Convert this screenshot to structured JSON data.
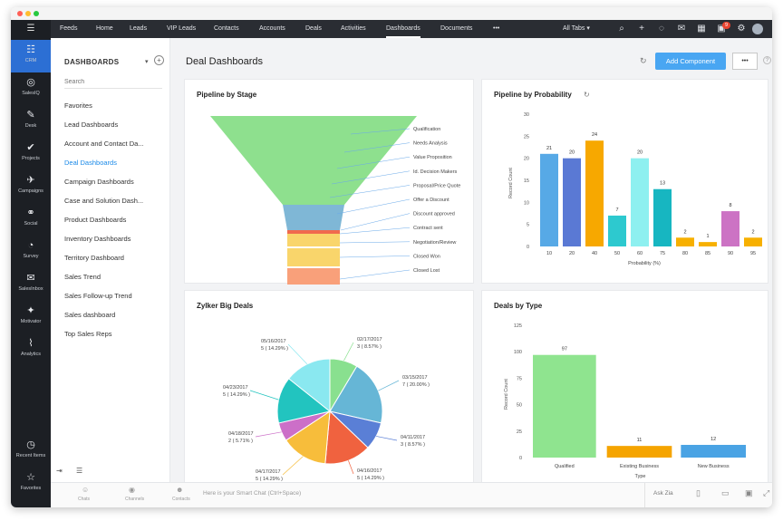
{
  "window_dots": [
    "#ff5f56",
    "#ffbd2e",
    "#27c93f"
  ],
  "rail": {
    "items": [
      {
        "label": "CRM",
        "icon": "crm-icon",
        "glyph": "☷"
      },
      {
        "label": "SalesIQ",
        "icon": "salesiq-icon",
        "glyph": "◎"
      },
      {
        "label": "Desk",
        "icon": "desk-icon",
        "glyph": "✎"
      },
      {
        "label": "Projects",
        "icon": "projects-icon",
        "glyph": "✔"
      },
      {
        "label": "Campaigns",
        "icon": "campaigns-icon",
        "glyph": "✈"
      },
      {
        "label": "Social",
        "icon": "social-icon",
        "glyph": "⚭"
      },
      {
        "label": "Survey",
        "icon": "survey-icon",
        "glyph": "◔"
      },
      {
        "label": "SalesInbox",
        "icon": "salesinbox-icon",
        "glyph": "✉"
      },
      {
        "label": "Motivator",
        "icon": "motivator-icon",
        "glyph": "✦"
      },
      {
        "label": "Analytics",
        "icon": "analytics-icon",
        "glyph": "⌇"
      }
    ],
    "recent_items": "Recent Items",
    "favorites": "Favorites"
  },
  "topnav": {
    "tabs": [
      "Feeds",
      "Home",
      "Leads",
      "VIP Leads",
      "Contacts",
      "Accounts",
      "Deals",
      "Activities",
      "Dashboards",
      "Documents",
      "•••"
    ],
    "active_tab": "Dashboards",
    "all_tabs": "All Tabs ▾",
    "notification_count": "9"
  },
  "sidebar": {
    "header": "DASHBOARDS",
    "search_placeholder": "Search",
    "items": [
      "Favorites",
      "Lead Dashboards",
      "Account and Contact Da...",
      "Deal Dashboards",
      "Campaign Dashboards",
      "Case and Solution Dash...",
      "Product Dashboards",
      "Inventory Dashboards",
      "Territory Dashboard",
      "Sales Trend",
      "Sales Follow-up Trend",
      "Sales dashboard",
      "Top Sales Reps"
    ],
    "active_item": "Deal Dashboards"
  },
  "main": {
    "title": "Deal Dashboards",
    "add_component": "Add Component",
    "more": "•••"
  },
  "cards": {
    "funnel_title": "Pipeline by Stage",
    "probability_title": "Pipeline by Probability",
    "pie_title": "Zylker Big Deals",
    "type_title": "Deals by Type"
  },
  "bottombar": {
    "items": [
      "Chats",
      "Channels",
      "Contacts"
    ],
    "smart_chat": "Here is your Smart Chat (Ctrl+Space)",
    "ask_zia": "Ask Zia"
  },
  "chart_data": [
    {
      "type": "funnel",
      "title": "Pipeline by Stage",
      "categories": [
        "Qualification",
        "Needs Analysis",
        "Value Proposition",
        "Id. Decision Makers",
        "Proposal/Price Quote",
        "Offer a Discount",
        "Discount approved",
        "Contract sent",
        "Negotiation/Review",
        "Closed Won",
        "Closed Lost"
      ],
      "colors": [
        "#8ee08e",
        "#8ee08e",
        "#8ee08e",
        "#8ee08e",
        "#8ee08e",
        "#7fb7d6",
        "#7fb7d6",
        "#f06a4e",
        "#f9d56b",
        "#f9d56b",
        "#f9a07a"
      ]
    },
    {
      "type": "bar",
      "title": "Pipeline by Probability",
      "categories": [
        "10",
        "20",
        "40",
        "50",
        "60",
        "75",
        "80",
        "85",
        "90",
        "95"
      ],
      "values": [
        21,
        20,
        24,
        7,
        20,
        13,
        2,
        1,
        8,
        2
      ],
      "colors": [
        "#57a9e6",
        "#5a79d4",
        "#f7a800",
        "#2dc9cf",
        "#8ef0f0",
        "#17b6c1",
        "#f7b000",
        "#f7b000",
        "#cc73c4",
        "#f7b000"
      ],
      "xlabel": "Probability (%)",
      "ylabel": "Record Count",
      "ylim": [
        0,
        30
      ],
      "yticks": [
        "30",
        "25",
        "20",
        "15",
        "10",
        "5",
        "0"
      ]
    },
    {
      "type": "pie",
      "title": "Zylker Big Deals",
      "slices": [
        {
          "date": "02/17/2017",
          "label": "3 ( 8.57% )",
          "value": 8.57,
          "color": "#89e08f"
        },
        {
          "date": "03/15/2017",
          "label": "7 ( 20.00% )",
          "value": 20.0,
          "color": "#66b6d6"
        },
        {
          "date": "04/11/2017",
          "label": "3 ( 8.57% )",
          "value": 8.57,
          "color": "#5a7fd6"
        },
        {
          "date": "04/16/2017",
          "label": "5 ( 14.29% )",
          "value": 14.29,
          "color": "#f0623f"
        },
        {
          "date": "04/17/2017",
          "label": "5 ( 14.29% )",
          "value": 14.29,
          "color": "#f7bd3b"
        },
        {
          "date": "04/18/2017",
          "label": "2 ( 5.71% )",
          "value": 5.71,
          "color": "#cc6fc8"
        },
        {
          "date": "04/23/2017",
          "label": "5 ( 14.29% )",
          "value": 14.29,
          "color": "#22c4bf"
        },
        {
          "date": "05/16/2017",
          "label": "5 ( 14.29% )",
          "value": 14.29,
          "color": "#8ae8f0"
        }
      ]
    },
    {
      "type": "bar",
      "title": "Deals by Type",
      "categories": [
        "Qualified",
        "Existing Business",
        "New Business"
      ],
      "values": [
        97,
        11,
        12
      ],
      "colors": [
        "#8fe48f",
        "#f5a400",
        "#4aa3e4"
      ],
      "xlabel": "Type",
      "ylabel": "Record Count",
      "ylim": [
        0,
        125
      ],
      "yticks": [
        "125",
        "100",
        "75",
        "50",
        "25",
        "0"
      ]
    }
  ]
}
